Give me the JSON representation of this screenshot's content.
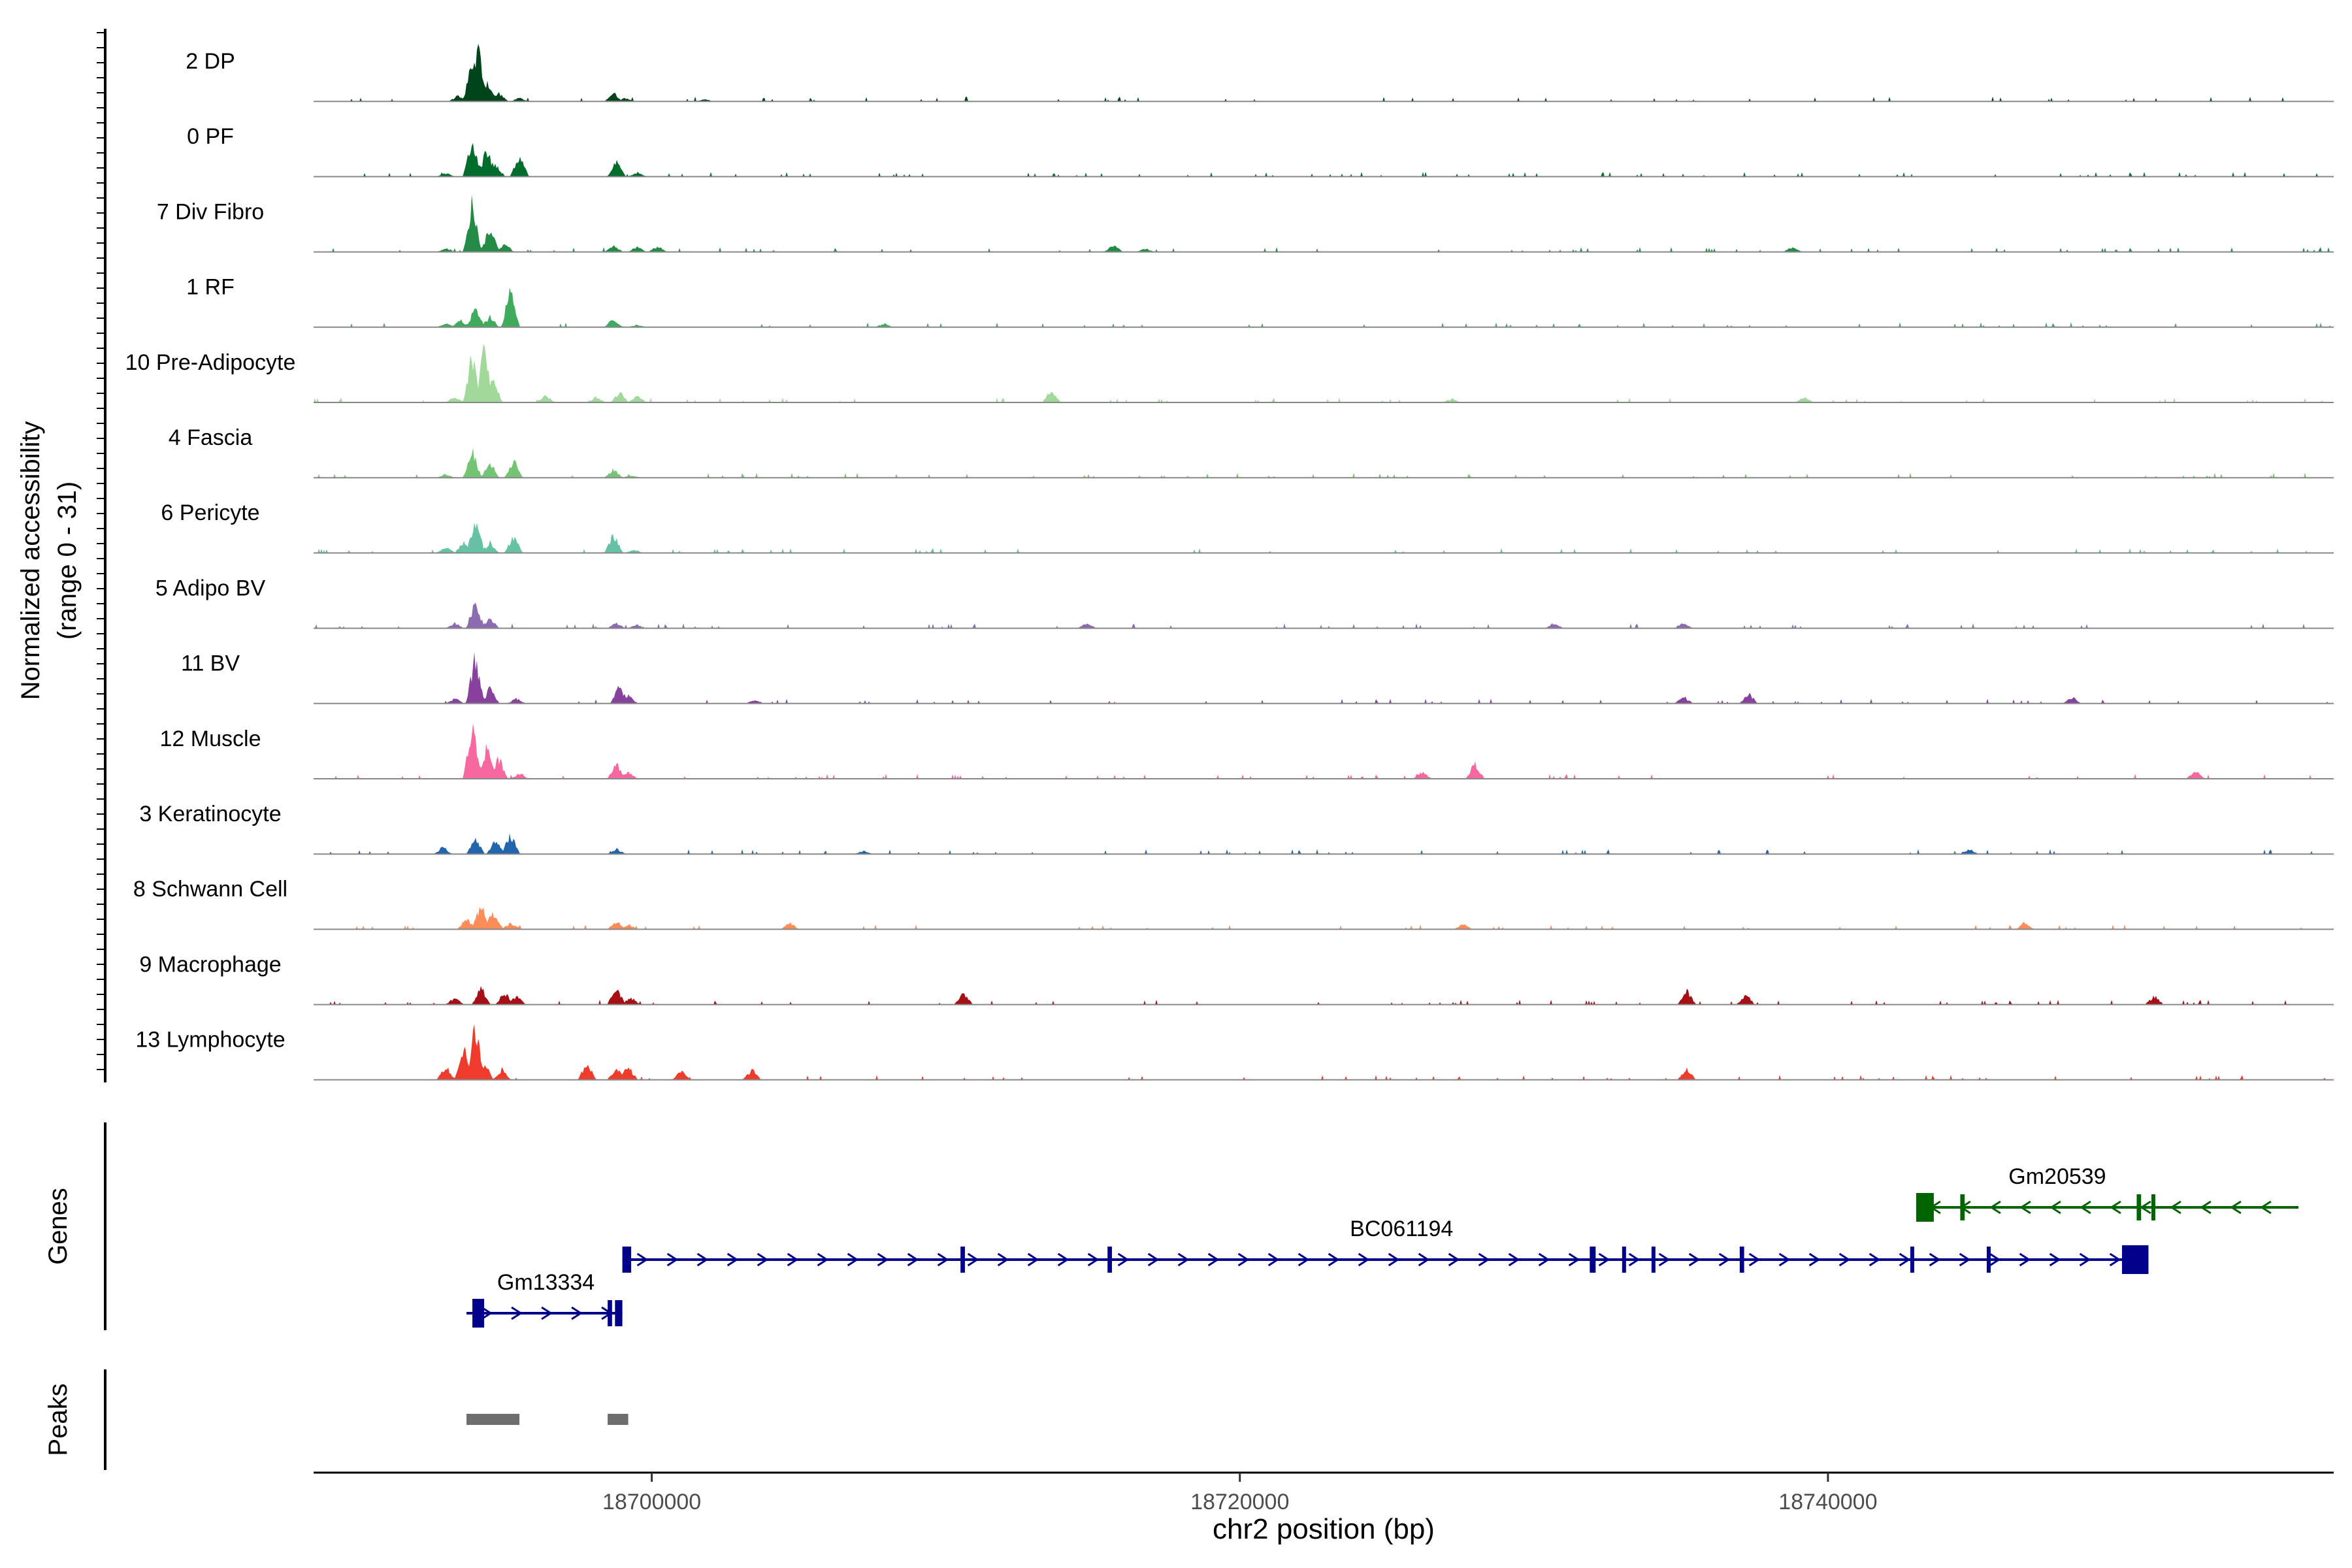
{
  "chart_data": {
    "type": "area",
    "chromosome": "chr2",
    "xlabel": "chr2 position (bp)",
    "xlim": [
      18688500,
      18757200
    ],
    "x_ticks": [
      18700000,
      18720000,
      18740000
    ],
    "x_tick_labels": [
      "18700000",
      "18720000",
      "18740000"
    ],
    "coverage_ylabel_line1": "Normalized accessibility",
    "coverage_ylabel_line2": "(range 0 - 31)",
    "coverage_ylim": [
      0,
      31
    ],
    "genes_label": "Genes",
    "peaks_label": "Peaks",
    "tracks": [
      {
        "name": "2 DP",
        "color": "#00441b",
        "profile": [
          [
            18693400,
            3
          ],
          [
            18693900,
            25
          ],
          [
            18694100,
            31
          ],
          [
            18694400,
            12
          ],
          [
            18694800,
            5
          ],
          [
            18695500,
            2
          ],
          [
            18698700,
            5
          ],
          [
            18699100,
            2
          ],
          [
            18701800,
            1.2
          ]
        ]
      },
      {
        "name": "0 PF",
        "color": "#006d2c",
        "profile": [
          [
            18693000,
            2
          ],
          [
            18693900,
            22
          ],
          [
            18694400,
            16
          ],
          [
            18694700,
            7
          ],
          [
            18695500,
            12
          ],
          [
            18698800,
            9
          ],
          [
            18699500,
            2.5
          ]
        ]
      },
      {
        "name": "7 Div Fibro",
        "color": "#238b45",
        "profile": [
          [
            18693000,
            2
          ],
          [
            18693900,
            30
          ],
          [
            18694500,
            14
          ],
          [
            18695000,
            5
          ],
          [
            18698700,
            4
          ],
          [
            18699500,
            3
          ],
          [
            18700200,
            3.5
          ],
          [
            18715700,
            4
          ],
          [
            18716800,
            2
          ],
          [
            18738800,
            3
          ]
        ]
      },
      {
        "name": "1 RF",
        "color": "#41ab5d",
        "profile": [
          [
            18693000,
            2.5
          ],
          [
            18693500,
            4
          ],
          [
            18694000,
            11
          ],
          [
            18694500,
            6
          ],
          [
            18695200,
            22
          ],
          [
            18698700,
            5
          ],
          [
            18699500,
            1.5
          ],
          [
            18707900,
            2
          ]
        ]
      },
      {
        "name": "10 Pre-Adipocyte",
        "color": "#a1d99b",
        "profile": [
          [
            18693300,
            3
          ],
          [
            18693900,
            28
          ],
          [
            18694300,
            31
          ],
          [
            18694600,
            14
          ],
          [
            18696400,
            4
          ],
          [
            18698100,
            3
          ],
          [
            18698900,
            6
          ],
          [
            18699500,
            4
          ],
          [
            18713600,
            7
          ],
          [
            18727200,
            2
          ],
          [
            18739200,
            3
          ]
        ]
      },
      {
        "name": "4 Fascia",
        "color": "#74c476",
        "profile": [
          [
            18693000,
            2
          ],
          [
            18693900,
            15
          ],
          [
            18694500,
            9
          ],
          [
            18695300,
            10
          ],
          [
            18698700,
            5
          ],
          [
            18699300,
            1.5
          ]
        ]
      },
      {
        "name": "6 Pericyte",
        "color": "#66c2a4",
        "profile": [
          [
            18693000,
            4
          ],
          [
            18693600,
            6
          ],
          [
            18694000,
            21
          ],
          [
            18694500,
            6
          ],
          [
            18695300,
            10
          ],
          [
            18698700,
            11
          ],
          [
            18699400,
            2
          ]
        ]
      },
      {
        "name": "5 Adipo BV",
        "color": "#8c6bb1",
        "profile": [
          [
            18693300,
            3
          ],
          [
            18694000,
            15
          ],
          [
            18694500,
            6
          ],
          [
            18698800,
            3
          ],
          [
            18699500,
            2
          ],
          [
            18714800,
            3
          ],
          [
            18730700,
            3
          ],
          [
            18735100,
            3
          ]
        ]
      },
      {
        "name": "11 BV",
        "color": "#88419d",
        "profile": [
          [
            18693300,
            3
          ],
          [
            18694000,
            28
          ],
          [
            18694500,
            9
          ],
          [
            18695400,
            3
          ],
          [
            18698900,
            10
          ],
          [
            18699200,
            5
          ],
          [
            18703500,
            2
          ],
          [
            18735100,
            4
          ],
          [
            18737300,
            6
          ],
          [
            18748300,
            4
          ]
        ]
      },
      {
        "name": "12 Muscle",
        "color": "#f768a1",
        "profile": [
          [
            18693900,
            31
          ],
          [
            18694400,
            20
          ],
          [
            18694800,
            12
          ],
          [
            18695500,
            3
          ],
          [
            18698800,
            9
          ],
          [
            18699200,
            4
          ],
          [
            18726200,
            4
          ],
          [
            18728000,
            9
          ],
          [
            18752500,
            5
          ]
        ]
      },
      {
        "name": "3 Keratinocyte",
        "color": "#2166ac",
        "profile": [
          [
            18692900,
            4
          ],
          [
            18694000,
            9
          ],
          [
            18694700,
            8
          ],
          [
            18695200,
            12
          ],
          [
            18698800,
            3
          ],
          [
            18707200,
            2
          ],
          [
            18744800,
            3
          ]
        ]
      },
      {
        "name": "8 Schwann Cell",
        "color": "#fc8d59",
        "profile": [
          [
            18693700,
            6
          ],
          [
            18694200,
            16
          ],
          [
            18694600,
            10
          ],
          [
            18695200,
            4
          ],
          [
            18698800,
            5
          ],
          [
            18699200,
            3
          ],
          [
            18704700,
            4
          ],
          [
            18727600,
            3
          ],
          [
            18746700,
            4
          ]
        ]
      },
      {
        "name": "9 Macrophage",
        "color": "#a50f15",
        "profile": [
          [
            18693300,
            4
          ],
          [
            18694200,
            10
          ],
          [
            18695000,
            7
          ],
          [
            18695400,
            5
          ],
          [
            18698800,
            10
          ],
          [
            18699300,
            4
          ],
          [
            18710600,
            7
          ],
          [
            18735200,
            8
          ],
          [
            18737200,
            6
          ],
          [
            18751100,
            5
          ]
        ]
      },
      {
        "name": "13 Lymphocyte",
        "color": "#ef3b2c",
        "profile": [
          [
            18693000,
            8
          ],
          [
            18693600,
            20
          ],
          [
            18694000,
            31
          ],
          [
            18694300,
            10
          ],
          [
            18694900,
            6
          ],
          [
            18697800,
            10
          ],
          [
            18698800,
            7
          ],
          [
            18699200,
            8
          ],
          [
            18701000,
            5
          ],
          [
            18703400,
            6
          ],
          [
            18735200,
            6
          ]
        ]
      }
    ],
    "genes": [
      {
        "name": "Gm20539",
        "color": "#006400",
        "strand": "-",
        "start": 18743000,
        "end": 18756000,
        "exons": [
          [
            18743000,
            18743600
          ],
          [
            18744500,
            18744650
          ],
          [
            18750500,
            18750650
          ],
          [
            18751000,
            18751100
          ]
        ]
      },
      {
        "name": "BC061194",
        "color": "#00008b",
        "strand": "+",
        "start": 18699000,
        "end": 18750900,
        "exons": [
          [
            18699000,
            18699300
          ],
          [
            18710500,
            18710650
          ],
          [
            18715500,
            18715650
          ],
          [
            18731900,
            18732100
          ],
          [
            18733000,
            18733100
          ],
          [
            18734000,
            18734100
          ],
          [
            18737000,
            18737150
          ],
          [
            18742800,
            18742900
          ],
          [
            18745400,
            18745500
          ],
          [
            18750000,
            18750900
          ]
        ]
      },
      {
        "name": "Gm13334",
        "color": "#00008b",
        "strand": "+",
        "start": 18693700,
        "end": 18699000,
        "exons": [
          [
            18693900,
            18694300
          ],
          [
            18698500,
            18698650
          ],
          [
            18698750,
            18699000
          ]
        ]
      }
    ],
    "peaks": [
      {
        "start": 18693700,
        "end": 18695500
      },
      {
        "start": 18698500,
        "end": 18699200
      }
    ]
  }
}
